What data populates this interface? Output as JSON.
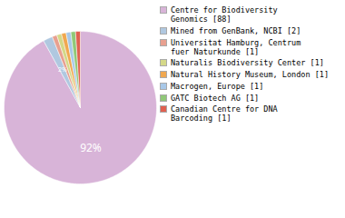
{
  "chart_data": {
    "type": "pie",
    "categories": [
      "Centre for Biodiversity\nGenomics [88]",
      "Mined from GenBank, NCBI [2]",
      "Universitat Hamburg, Centrum\nfuer Naturkunde [1]",
      "Naturalis Biodiversity Center [1]",
      "Natural History Museum, London [1]",
      "Macrogen, Europe [1]",
      "GATC Biotech AG [1]",
      "Canadian Centre for DNA\nBarcoding [1]"
    ],
    "values": [
      92,
      2,
      1,
      1,
      1,
      1,
      1,
      1
    ],
    "value_labels": [
      "92%",
      "2%",
      null,
      null,
      null,
      null,
      null,
      null
    ],
    "colors": [
      "#d8b4d8",
      "#b0c8e0",
      "#e8a090",
      "#d4d888",
      "#f0a850",
      "#a8c8e8",
      "#90c878",
      "#e06050"
    ],
    "data_labels": true,
    "legend": "right"
  }
}
